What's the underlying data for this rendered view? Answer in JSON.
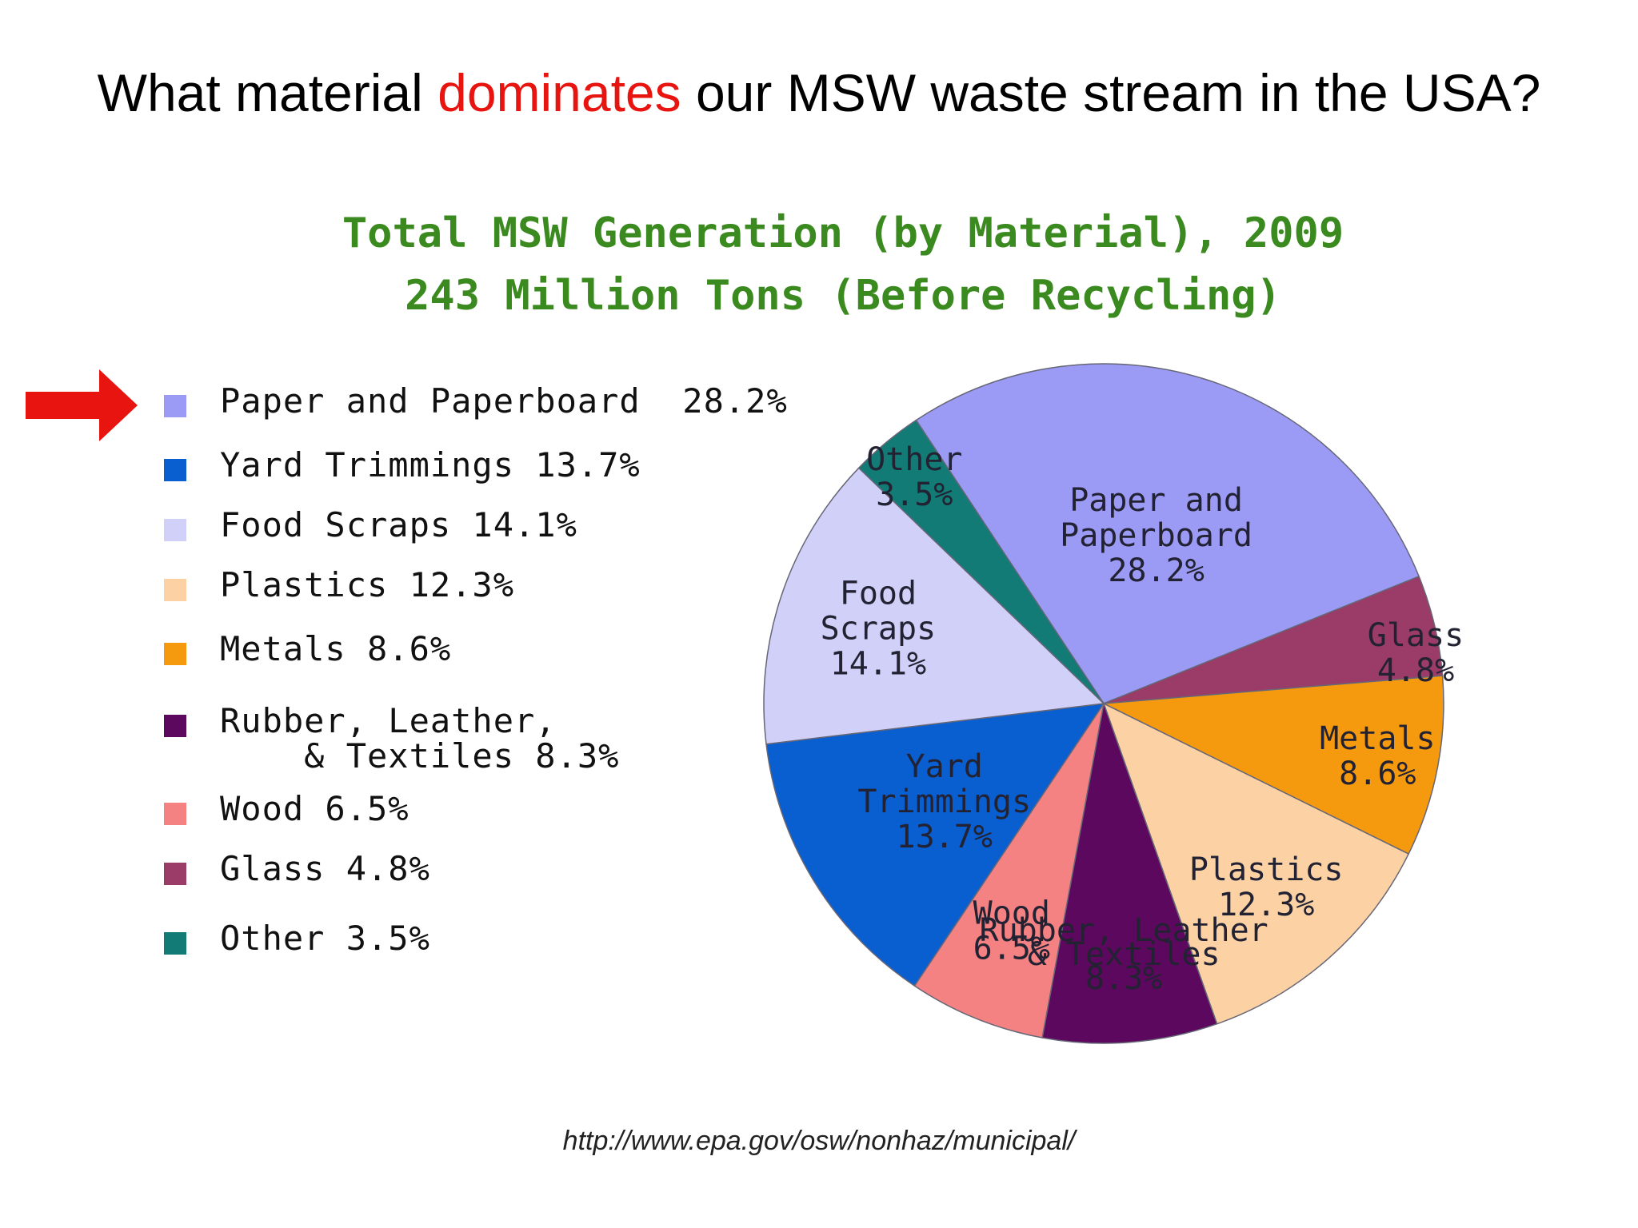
{
  "slide": {
    "title_before": "What material ",
    "title_highlight": "dominates",
    "title_after": " our MSW waste stream in the USA?",
    "source_url": "http://www.epa.gov/osw/nonhaz/municipal/"
  },
  "chart_data": {
    "type": "pie",
    "title": "Total MSW Generation (by Material), 2009",
    "subtitle": "243 Million Tons (Before Recycling)",
    "unit": "%",
    "legend_position": "left",
    "slices": [
      {
        "name": "Paper and Paperboard",
        "value": 28.2,
        "color": "#9b9bf5",
        "legend": "Paper and Paperboard  28.2%",
        "label": [
          "Paper and",
          "Paperboard",
          "28.2%"
        ]
      },
      {
        "name": "Glass",
        "value": 4.8,
        "color": "#9a3b68",
        "legend": "Glass 4.8%",
        "label": [
          "Glass",
          "4.8%"
        ]
      },
      {
        "name": "Metals",
        "value": 8.6,
        "color": "#f59a0f",
        "legend": "Metals 8.6%",
        "label": [
          "Metals",
          "8.6%"
        ]
      },
      {
        "name": "Plastics",
        "value": 12.3,
        "color": "#fcd1a4",
        "legend": "Plastics 12.3%",
        "label": [
          "Plastics",
          "12.3%"
        ]
      },
      {
        "name": "Rubber, Leather, & Textiles",
        "value": 8.3,
        "color": "#5c085e",
        "legend": "Rubber, Leather,\n    & Textiles 8.3%",
        "label": [
          "Rubber, Leather",
          "& Textiles",
          "8.3%"
        ]
      },
      {
        "name": "Wood",
        "value": 6.5,
        "color": "#f48282",
        "legend": "Wood 6.5%",
        "label": [
          "Wood",
          "6.5%"
        ]
      },
      {
        "name": "Yard Trimmings",
        "value": 13.7,
        "color": "#0a5fd0",
        "legend": "Yard Trimmings 13.7%",
        "label": [
          "Yard",
          "Trimmings",
          "13.7%"
        ]
      },
      {
        "name": "Food Scraps",
        "value": 14.1,
        "color": "#d0d0f8",
        "legend": "Food Scraps 14.1%",
        "label": [
          "Food",
          "Scraps",
          "14.1%"
        ]
      },
      {
        "name": "Other",
        "value": 3.5,
        "color": "#127b76",
        "legend": "Other 3.5%",
        "label": [
          "Other",
          "3.5%"
        ]
      }
    ],
    "legend_order": [
      "Paper and Paperboard",
      "Yard Trimmings",
      "Food Scraps",
      "Plastics",
      "Metals",
      "Rubber, Leather, & Textiles",
      "Wood",
      "Glass",
      "Other"
    ]
  },
  "colors": {
    "highlight": "#e8140f",
    "arrow": "#e8140f",
    "chart_title": "#3a8a1f"
  },
  "icons": {
    "pointer": "right-arrow-icon"
  }
}
